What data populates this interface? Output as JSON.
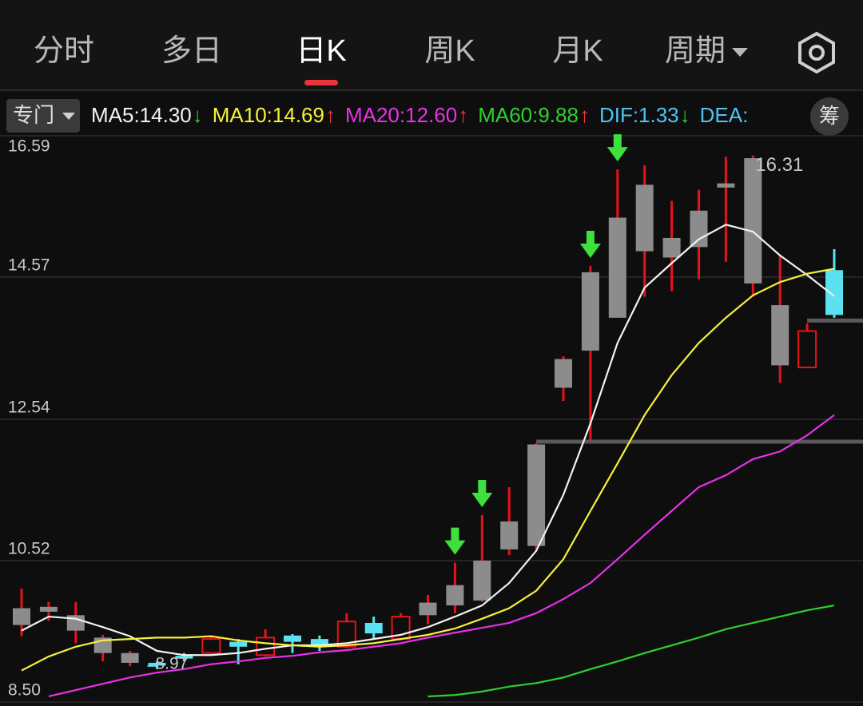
{
  "tabs": [
    "分时",
    "多日",
    "日K",
    "周K",
    "月K",
    "周期"
  ],
  "active_tab": 2,
  "indicator_button": "专门",
  "indicators": [
    {
      "label": "MA5:14.30",
      "arrow": "↓",
      "color": "#f2f2f2",
      "arrow_color": "#2fd02f"
    },
    {
      "label": "MA10:14.69",
      "arrow": "↑",
      "color": "#f5f03c",
      "arrow_color": "#f03a3a"
    },
    {
      "label": "MA20:12.60",
      "arrow": "↑",
      "color": "#e632e6",
      "arrow_color": "#f03a3a"
    },
    {
      "label": "MA60:9.88",
      "arrow": "↑",
      "color": "#2fd02f",
      "arrow_color": "#f03a3a"
    },
    {
      "label": "DIF:1.33",
      "arrow": "↓",
      "color": "#4fc3f7",
      "arrow_color": "#2fd02f"
    },
    {
      "label": "DEA:",
      "arrow": null,
      "color": "#4fc3f7",
      "arrow_color": null
    }
  ],
  "side_button": "筹",
  "chart_data": {
    "type": "candlestick",
    "categories": [
      null,
      null,
      null,
      null,
      null,
      null,
      null,
      null,
      null,
      null,
      null,
      null,
      null,
      null,
      null,
      null,
      null,
      null,
      null,
      null,
      null,
      null,
      null,
      null,
      null,
      null,
      null,
      null,
      null,
      null,
      null
    ],
    "open": [
      9.84,
      9.86,
      9.74,
      9.42,
      9.2,
      9.06,
      9.16,
      9.2,
      9.36,
      9.17,
      9.45,
      9.4,
      9.29,
      9.63,
      9.4,
      9.92,
      10.17,
      10.52,
      11.08,
      12.18,
      13.4,
      14.64,
      15.42,
      15.89,
      15.13,
      15.52,
      15.91,
      16.27,
      14.17,
      13.28,
      14.67
    ],
    "high": [
      10.12,
      9.93,
      9.93,
      9.46,
      9.23,
      9.08,
      9.2,
      9.45,
      9.4,
      9.54,
      9.47,
      9.45,
      9.77,
      9.72,
      9.77,
      10.03,
      10.49,
      11.17,
      11.57,
      12.2,
      13.44,
      14.73,
      16.11,
      16.17,
      15.66,
      15.82,
      16.29,
      16.31,
      14.88,
      13.91,
      14.97
    ],
    "low": [
      9.44,
      9.66,
      9.34,
      9.08,
      9.01,
      8.97,
      9.08,
      9.17,
      9.04,
      9.15,
      9.2,
      9.23,
      9.27,
      9.4,
      9.38,
      9.61,
      9.77,
      9.93,
      10.6,
      10.66,
      12.8,
      12.24,
      13.99,
      14.29,
      14.37,
      14.54,
      14.79,
      14.29,
      13.06,
      13.28,
      13.99
    ],
    "close": [
      9.6,
      9.79,
      9.52,
      9.2,
      9.06,
      9.02,
      9.12,
      9.4,
      9.29,
      9.42,
      9.36,
      9.31,
      9.65,
      9.48,
      9.72,
      9.74,
      9.88,
      9.95,
      10.68,
      10.73,
      12.99,
      13.52,
      13.99,
      14.94,
      14.85,
      15.0,
      15.85,
      14.48,
      13.31,
      13.8,
      14.03
    ],
    "candle_colors": [
      "#8c8c8c",
      "#8c8c8c",
      "#8c8c8c",
      "#8c8c8c",
      "#8c8c8c",
      "#5ce1f0",
      "#5ce1f0",
      "#e8121b",
      "#5ce1f0",
      "#e8121b",
      "#5ce1f0",
      "#5ce1f0",
      "#e8121b",
      "#5ce1f0",
      "#e8121b",
      "#8c8c8c",
      "#8c8c8c",
      "#8c8c8c",
      "#8c8c8c",
      "#8c8c8c",
      "#8c8c8c",
      "#8c8c8c",
      "#8c8c8c",
      "#8c8c8c",
      "#8c8c8c",
      "#8c8c8c",
      "#8c8c8c",
      "#8c8c8c",
      "#8c8c8c",
      "#e8121b",
      "#5ce1f0"
    ],
    "wick_colors": [
      "#e8121b",
      "#e8121b",
      "#e8121b",
      "#e8121b",
      "#e8121b",
      "#5ce1f0",
      "#5ce1f0",
      "#e8121b",
      "#5ce1f0",
      "#e8121b",
      "#5ce1f0",
      "#5ce1f0",
      "#e8121b",
      "#5ce1f0",
      "#e8121b",
      "#e8121b",
      "#e8121b",
      "#e8121b",
      "#e8121b",
      "#e8121b",
      "#e8121b",
      "#e8121b",
      "#e8121b",
      "#e8121b",
      "#e8121b",
      "#e8121b",
      "#e8121b",
      "#e8121b",
      "#e8121b",
      "#e8121b",
      "#5ce1f0"
    ],
    "series": [
      {
        "name": "MA5",
        "color": "#f2f2f2",
        "values": [
          9.52,
          9.72,
          9.69,
          9.57,
          9.44,
          9.23,
          9.17,
          9.17,
          9.2,
          9.26,
          9.31,
          9.31,
          9.34,
          9.4,
          9.46,
          9.57,
          9.72,
          9.88,
          10.2,
          10.66,
          11.46,
          12.48,
          13.63,
          14.42,
          14.77,
          15.11,
          15.32,
          15.22,
          14.88,
          14.6,
          14.3
        ]
      },
      {
        "name": "MA10",
        "color": "#f5f03c",
        "values": [
          8.95,
          9.15,
          9.29,
          9.38,
          9.4,
          9.42,
          9.42,
          9.44,
          9.38,
          9.34,
          9.31,
          9.29,
          9.31,
          9.34,
          9.4,
          9.46,
          9.55,
          9.69,
          9.84,
          10.09,
          10.54,
          11.23,
          11.91,
          12.6,
          13.17,
          13.63,
          13.99,
          14.31,
          14.5,
          14.62,
          14.69
        ]
      },
      {
        "name": "MA20",
        "color": "#e632e6",
        "values": [
          null,
          8.58,
          8.67,
          8.76,
          8.85,
          8.92,
          8.97,
          9.04,
          9.08,
          9.13,
          9.16,
          9.21,
          9.24,
          9.29,
          9.34,
          9.42,
          9.49,
          9.56,
          9.63,
          9.77,
          9.97,
          10.2,
          10.54,
          10.89,
          11.23,
          11.57,
          11.74,
          11.97,
          12.08,
          12.31,
          12.6
        ]
      },
      {
        "name": "MA60",
        "color": "#2fd02f",
        "values": [
          null,
          null,
          null,
          null,
          null,
          null,
          null,
          null,
          null,
          null,
          null,
          null,
          null,
          null,
          null,
          8.58,
          8.6,
          8.65,
          8.72,
          8.77,
          8.85,
          8.97,
          9.08,
          9.2,
          9.31,
          9.42,
          9.54,
          9.63,
          9.72,
          9.81,
          9.88
        ]
      }
    ],
    "arrow_candles": [
      16,
      17,
      21,
      22
    ],
    "arrow_color": "#3de03d",
    "reference_lines": [
      {
        "value": 12.22,
        "from": 19
      },
      {
        "value": 13.95,
        "from": 29
      }
    ],
    "low_label_candle": 5,
    "high_label_candle": 27,
    "ylim": [
      8.5,
      16.59
    ],
    "yticks": [
      16.59,
      14.57,
      12.54,
      10.52,
      {
        "value": 8.5,
        "label": "8.50"
      }
    ],
    "grid": true
  }
}
